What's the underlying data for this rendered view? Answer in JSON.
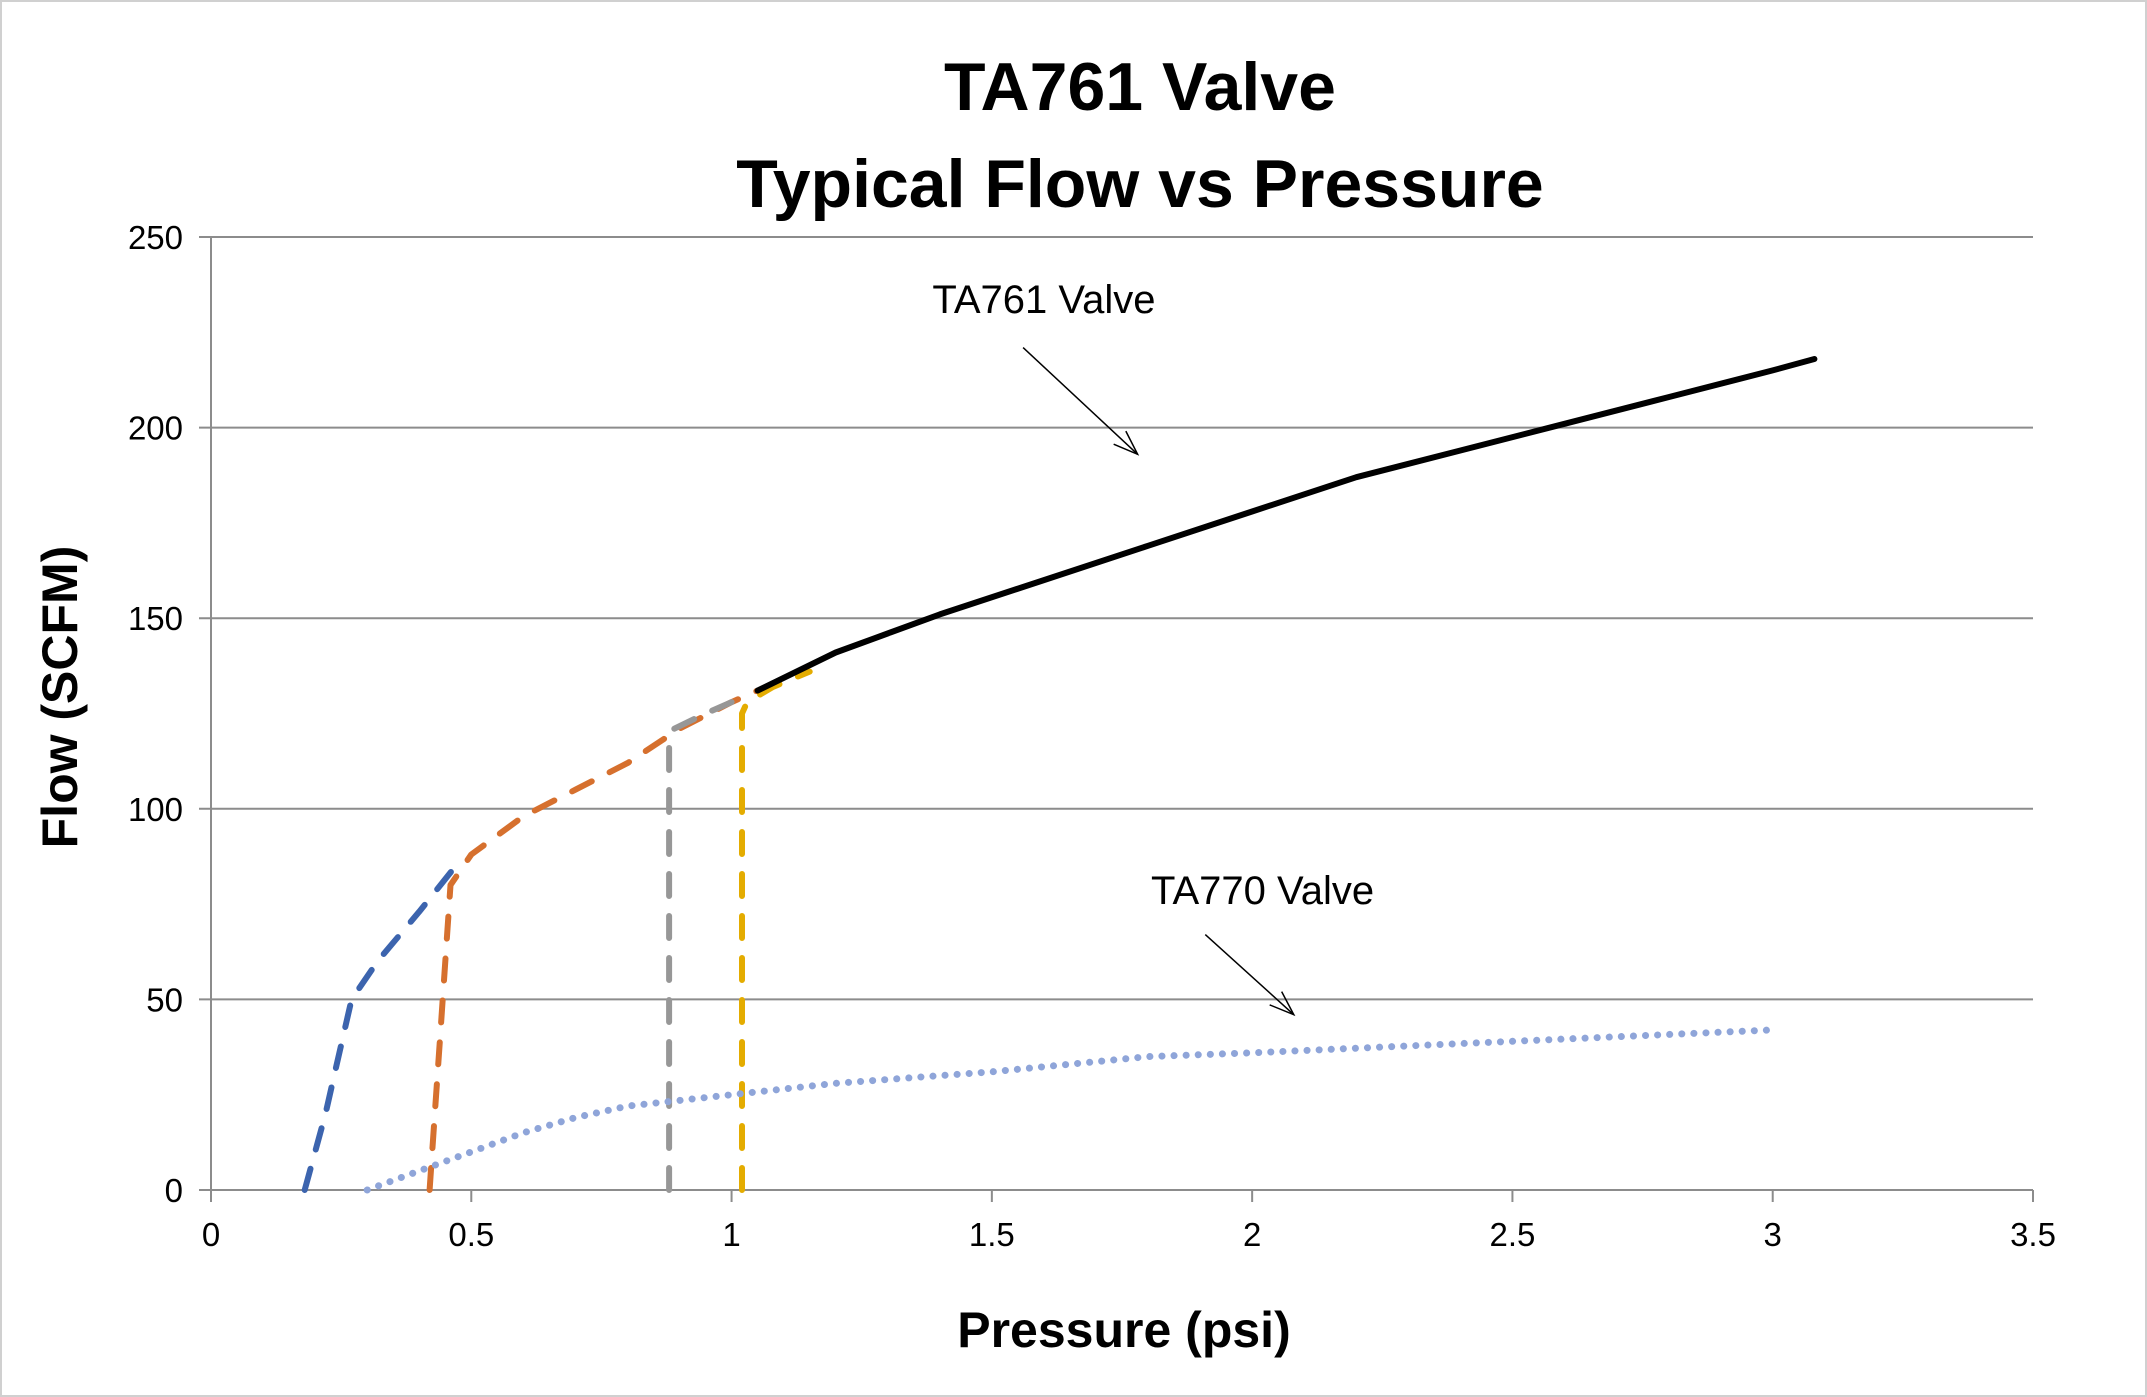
{
  "chart_data": {
    "type": "line",
    "title": [
      "TA761 Valve",
      "Typical Flow vs Pressure"
    ],
    "xlabel": "Pressure (psi)",
    "ylabel": "Flow (SCFM)",
    "xlim": [
      0,
      3.5
    ],
    "ylim": [
      0,
      250
    ],
    "xticks": [
      "0",
      "0.5",
      "1",
      "1.5",
      "2",
      "2.5",
      "3",
      "3.5"
    ],
    "yticks": [
      "0",
      "50",
      "100",
      "150",
      "200",
      "250"
    ],
    "grid": "horizontal",
    "legend": "none",
    "series": [
      {
        "color": "#3c64ae",
        "style": "dashed",
        "x": [
          0.18,
          0.2,
          0.22,
          0.24,
          0.27,
          0.32,
          0.4,
          0.47
        ],
        "y": [
          0,
          10,
          20,
          32,
          50,
          60,
          73,
          85
        ]
      },
      {
        "color": "#d6702e",
        "style": "dashed",
        "x": [
          0.42,
          0.43,
          0.44,
          0.45,
          0.46,
          0.5,
          0.6,
          0.7,
          0.8,
          0.9,
          1.0,
          1.05
        ],
        "y": [
          0,
          20,
          40,
          60,
          80,
          88,
          98,
          105,
          112,
          121,
          128,
          131
        ]
      },
      {
        "color": "#979797",
        "style": "dashed",
        "x": [
          0.88,
          0.88,
          0.88,
          0.89,
          0.95,
          1.0
        ],
        "y": [
          0,
          60,
          116,
          121,
          125,
          128
        ]
      },
      {
        "color": "#e4ac00",
        "style": "dashed",
        "x": [
          1.02,
          1.02,
          1.02,
          1.03,
          1.08,
          1.15
        ],
        "y": [
          0,
          60,
          125,
          128,
          132,
          136
        ]
      },
      {
        "color": "#000000",
        "style": "solid",
        "x": [
          1.05,
          1.2,
          1.4,
          1.6,
          1.8,
          2.0,
          2.2,
          2.4,
          2.6,
          2.8,
          3.0,
          3.08
        ],
        "y": [
          131,
          141,
          151,
          160,
          169,
          178,
          187,
          194,
          201,
          208,
          215,
          218
        ]
      },
      {
        "color": "#8fa5d9",
        "style": "dotted",
        "x": [
          0.3,
          0.4,
          0.5,
          0.6,
          0.7,
          0.8,
          1.0,
          1.2,
          1.5,
          1.8,
          2.0,
          2.5,
          3.0
        ],
        "y": [
          0,
          5,
          10,
          15,
          19,
          22,
          25,
          28,
          31,
          35,
          36,
          39,
          42
        ]
      }
    ],
    "annotations": [
      {
        "text": "TA761 Valve",
        "x": 1.6,
        "y": 230,
        "arrow_from": [
          1.56,
          221
        ],
        "arrow_to": [
          1.78,
          193
        ]
      },
      {
        "text": "TA770 Valve",
        "x": 2.02,
        "y": 75,
        "arrow_from": [
          1.91,
          67
        ],
        "arrow_to": [
          2.08,
          46
        ]
      }
    ]
  }
}
